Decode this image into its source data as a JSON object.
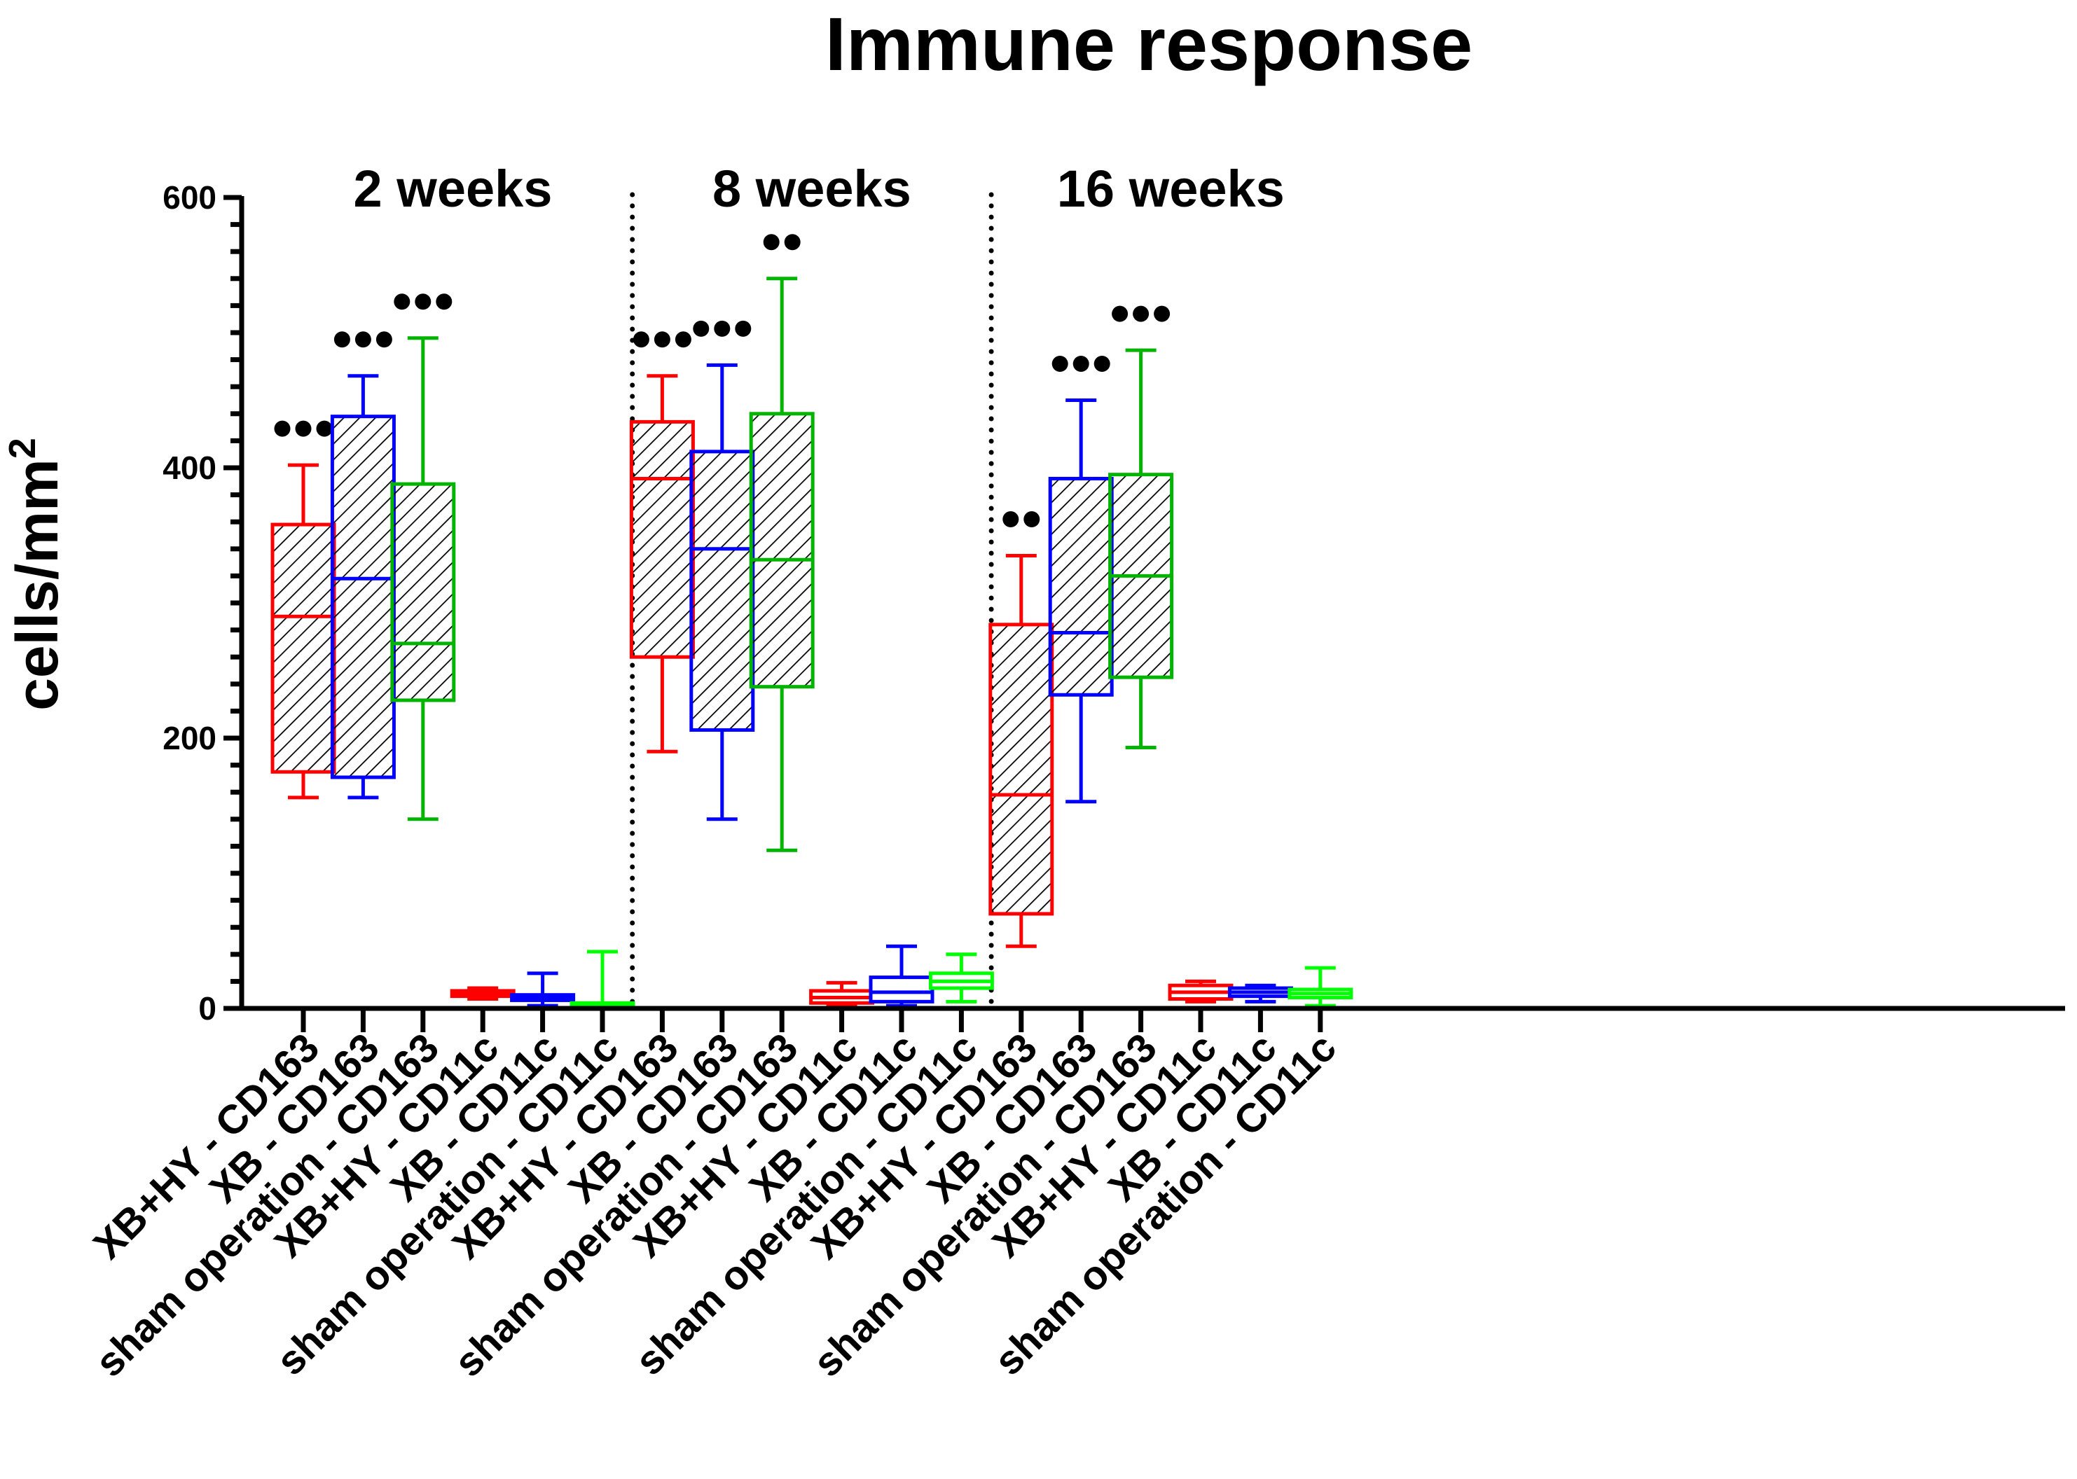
{
  "chart_data": {
    "type": "box",
    "title": "Immune response",
    "ylabel": "cells/mm",
    "ylabel_superscript": "2",
    "xlabel": "",
    "ylim": [
      0,
      600
    ],
    "yticks": [
      0,
      200,
      400,
      600
    ],
    "ytick_labels": [
      "0",
      "200",
      "400",
      "600"
    ],
    "periods": [
      {
        "label": "2 weeks",
        "start": 0,
        "end": 5
      },
      {
        "label": "8 weeks",
        "start": 6,
        "end": 11
      },
      {
        "label": "16 weeks",
        "start": 12,
        "end": 17
      }
    ],
    "categories": [
      "XB+HY - CD163",
      "XB - CD163",
      "sham operation - CD163",
      "XB+HY - CD11c",
      "XB - CD11c",
      "sham operation - CD11c",
      "XB+HY - CD163",
      "XB - CD163",
      "sham operation - CD163",
      "XB+HY - CD11c",
      "XB - CD11c",
      "sham operation - CD11c",
      "XB+HY - CD163",
      "XB - CD163",
      "sham operation - CD163",
      "XB+HY - CD11c",
      "XB - CD11c",
      "sham operation - CD11c"
    ],
    "boxes": [
      {
        "min": 156,
        "q1": 175,
        "median": 290,
        "q3": 358,
        "max": 402,
        "color": "#ff0000",
        "hatched": true,
        "significance": 3
      },
      {
        "min": 156,
        "q1": 171,
        "median": 318,
        "q3": 438,
        "max": 468,
        "color": "#0000ff",
        "hatched": true,
        "significance": 3
      },
      {
        "min": 140,
        "q1": 228,
        "median": 270,
        "q3": 388,
        "max": 496,
        "color": "#00b400",
        "hatched": true,
        "significance": 3
      },
      {
        "min": 7,
        "q1": 9,
        "median": 11,
        "q3": 13,
        "max": 15,
        "color": "#ff0000",
        "hatched": false,
        "significance": 0
      },
      {
        "min": 2,
        "q1": 6,
        "median": 8,
        "q3": 10,
        "max": 26,
        "color": "#0000ff",
        "hatched": false,
        "significance": 0
      },
      {
        "min": 0,
        "q1": 2,
        "median": 3,
        "q3": 4,
        "max": 42,
        "color": "#00ff00",
        "hatched": false,
        "significance": 0
      },
      {
        "min": 190,
        "q1": 260,
        "median": 392,
        "q3": 434,
        "max": 468,
        "color": "#ff0000",
        "hatched": true,
        "significance": 3
      },
      {
        "min": 140,
        "q1": 206,
        "median": 340,
        "q3": 412,
        "max": 476,
        "color": "#0000ff",
        "hatched": true,
        "significance": 3
      },
      {
        "min": 117,
        "q1": 238,
        "median": 332,
        "q3": 440,
        "max": 540,
        "color": "#00b400",
        "hatched": true,
        "significance": 2
      },
      {
        "min": 2,
        "q1": 4,
        "median": 8,
        "q3": 13,
        "max": 19,
        "color": "#ff0000",
        "hatched": false,
        "significance": 0
      },
      {
        "min": 2,
        "q1": 5,
        "median": 12,
        "q3": 23,
        "max": 46,
        "color": "#0000ff",
        "hatched": false,
        "significance": 0
      },
      {
        "min": 5,
        "q1": 15,
        "median": 20,
        "q3": 26,
        "max": 40,
        "color": "#00ff00",
        "hatched": false,
        "significance": 0
      },
      {
        "min": 46,
        "q1": 70,
        "median": 158,
        "q3": 284,
        "max": 335,
        "color": "#ff0000",
        "hatched": true,
        "significance": 2
      },
      {
        "min": 153,
        "q1": 232,
        "median": 278,
        "q3": 392,
        "max": 450,
        "color": "#0000ff",
        "hatched": true,
        "significance": 3
      },
      {
        "min": 193,
        "q1": 245,
        "median": 320,
        "q3": 395,
        "max": 487,
        "color": "#00b400",
        "hatched": true,
        "significance": 3
      },
      {
        "min": 5,
        "q1": 7,
        "median": 12,
        "q3": 17,
        "max": 20,
        "color": "#ff0000",
        "hatched": false,
        "significance": 0
      },
      {
        "min": 5,
        "q1": 9,
        "median": 12,
        "q3": 15,
        "max": 17,
        "color": "#0000ff",
        "hatched": false,
        "significance": 0
      },
      {
        "min": 2,
        "q1": 8,
        "median": 11,
        "q3": 14,
        "max": 30,
        "color": "#00ff00",
        "hatched": false,
        "significance": 0
      }
    ]
  }
}
